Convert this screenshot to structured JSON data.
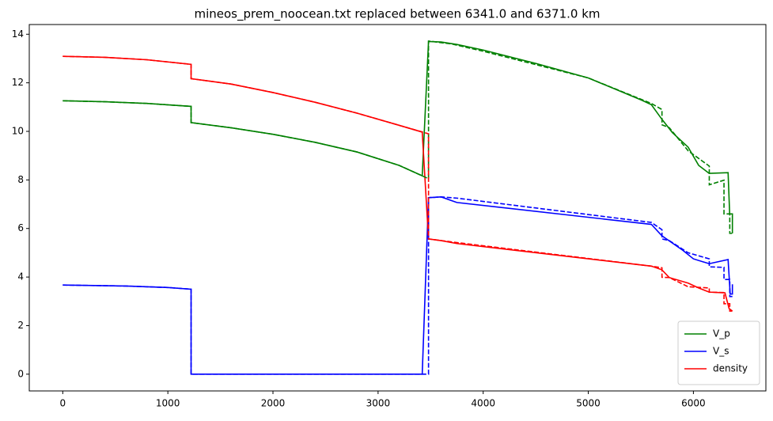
{
  "chart_data": {
    "type": "line",
    "title": "mineos_prem_noocean.txt replaced between 6341.0 and 6371.0 km",
    "xlim": [
      -318.55,
      6689.55
    ],
    "xticks": [
      0,
      1000,
      2000,
      3000,
      4000,
      5000,
      6000
    ],
    "ylim": [
      -0.69,
      14.4
    ],
    "yticks": [
      0,
      2,
      4,
      6,
      8,
      10,
      12,
      14
    ],
    "legend": "lower right",
    "series": [
      {
        "name": "V_p",
        "color": "#008000",
        "dashed": false,
        "x": [
          0,
          400,
          800,
          1221,
          1221,
          1600,
          2000,
          2400,
          2800,
          3200,
          3420,
          3480,
          3600,
          3750,
          4000,
          4500,
          5000,
          5500,
          5600,
          5700,
          5800,
          5950,
          6050,
          6150,
          6330,
          6345,
          6371,
          6371
        ],
        "values": [
          11.26,
          11.22,
          11.15,
          11.03,
          10.36,
          10.15,
          9.88,
          9.55,
          9.15,
          8.6,
          8.17,
          13.7,
          13.68,
          13.58,
          13.35,
          12.8,
          12.2,
          11.3,
          11.1,
          10.5,
          9.95,
          9.35,
          8.6,
          8.27,
          8.3,
          6.6,
          6.6,
          5.8
        ]
      },
      {
        "name": "V_s",
        "color": "#0000ff",
        "dashed": false,
        "x": [
          0,
          600,
          1000,
          1221,
          1221,
          3420,
          3480,
          3600,
          3750,
          5600,
          5700,
          5900,
          6000,
          6150,
          6330,
          6350,
          6371,
          6371
        ],
        "values": [
          3.67,
          3.63,
          3.57,
          3.5,
          0,
          0,
          7.27,
          7.3,
          7.07,
          6.17,
          5.7,
          5.1,
          4.75,
          4.55,
          4.72,
          3.3,
          3.3,
          3.7
        ]
      },
      {
        "name": "density",
        "color": "#ff0000",
        "dashed": false,
        "x": [
          0,
          400,
          800,
          1221,
          1221,
          1600,
          2000,
          2400,
          2800,
          3200,
          3420,
          3480,
          3600,
          3750,
          5600,
          5700,
          5770,
          5950,
          6050,
          6150,
          6300,
          6340,
          6371
        ],
        "values": [
          13.09,
          13.05,
          12.95,
          12.76,
          12.17,
          11.95,
          11.6,
          11.2,
          10.75,
          10.25,
          9.97,
          5.57,
          5.5,
          5.38,
          4.45,
          4.3,
          3.98,
          3.75,
          3.55,
          3.38,
          3.35,
          2.7,
          2.6
        ]
      },
      {
        "color": "#008000",
        "dashed": true,
        "x": [
          0,
          400,
          800,
          1221,
          1221,
          1600,
          2000,
          2400,
          2800,
          3200,
          3480,
          3480,
          3700,
          4000,
          5000,
          5600,
          5701,
          5701,
          5771,
          5950,
          6151,
          6151,
          6291,
          6291,
          6346,
          6346,
          6371
        ],
        "values": [
          11.26,
          11.22,
          11.15,
          11.03,
          10.36,
          10.15,
          9.88,
          9.55,
          9.15,
          8.6,
          8.05,
          13.72,
          13.6,
          13.3,
          12.2,
          11.15,
          10.9,
          10.27,
          10.15,
          9.2,
          8.57,
          7.8,
          7.99,
          6.6,
          6.6,
          5.8,
          5.8
        ]
      },
      {
        "color": "#0000ff",
        "dashed": true,
        "x": [
          0,
          600,
          1000,
          1221,
          1221,
          3480,
          3480,
          3600,
          3750,
          5600,
          5701,
          5701,
          5771,
          5950,
          6151,
          6151,
          6291,
          6291,
          6346,
          6346,
          6371
        ],
        "values": [
          3.67,
          3.63,
          3.57,
          3.5,
          0,
          0,
          7.27,
          7.3,
          7.25,
          6.25,
          5.95,
          5.57,
          5.5,
          5.0,
          4.75,
          4.42,
          4.4,
          3.9,
          3.9,
          3.2,
          3.2
        ]
      },
      {
        "color": "#ff0000",
        "dashed": true,
        "x": [
          0,
          400,
          800,
          1221,
          1221,
          1600,
          2000,
          2400,
          2800,
          3200,
          3480,
          3480,
          3750,
          5600,
          5701,
          5701,
          5771,
          5950,
          6151,
          6151,
          6291,
          6291,
          6346,
          6346,
          6371
        ],
        "values": [
          13.09,
          13.05,
          12.95,
          12.76,
          12.17,
          11.95,
          11.6,
          11.2,
          10.75,
          10.25,
          9.9,
          5.57,
          5.42,
          4.45,
          4.38,
          3.99,
          3.98,
          3.6,
          3.55,
          3.38,
          3.36,
          2.9,
          2.9,
          2.6,
          2.6
        ]
      }
    ]
  }
}
